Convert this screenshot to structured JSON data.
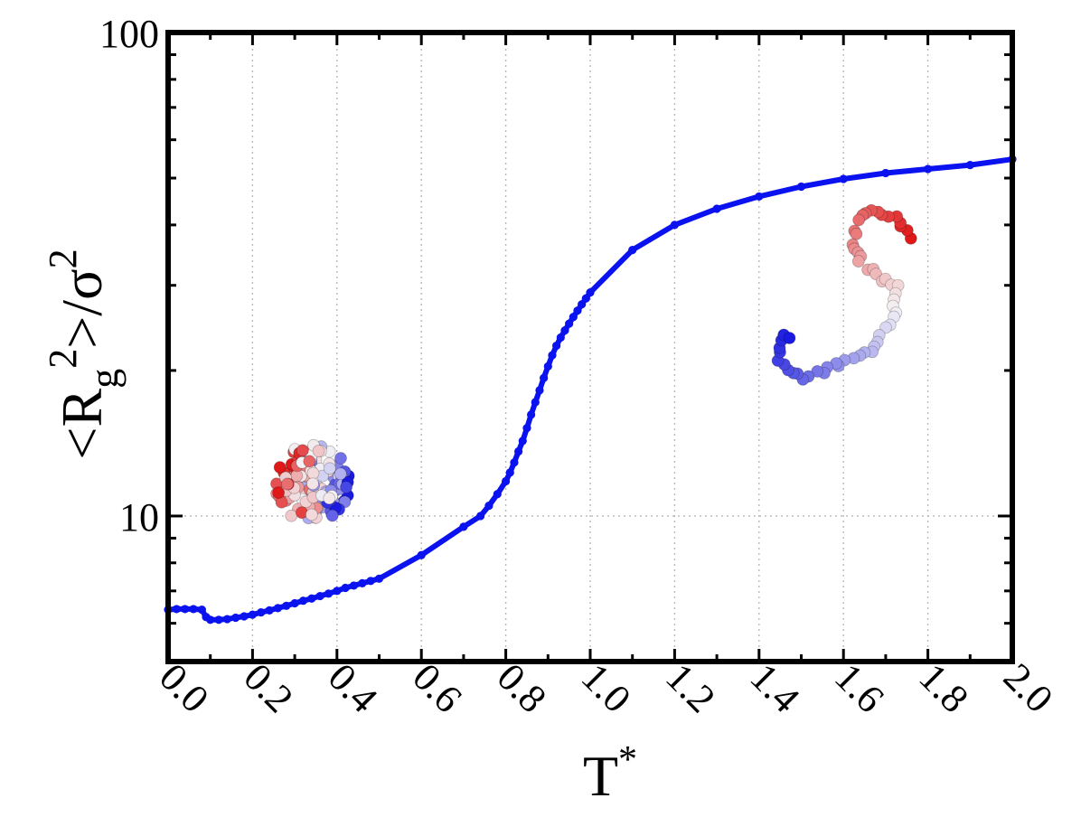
{
  "chart_data": {
    "type": "line",
    "title": "",
    "xlabel": "T",
    "xlabel_sup": "*",
    "ylabel_parts": {
      "open": "<R",
      "sub": "g",
      "sup1": "2",
      "mid": ">/σ",
      "sup2": "2"
    },
    "x_scale": "linear",
    "y_scale": "log",
    "xlim": [
      0.0,
      2.0
    ],
    "ylim": [
      5,
      100
    ],
    "x_ticks": [
      "0.0",
      "0.2",
      "0.4",
      "0.6",
      "0.8",
      "1.0",
      "1.2",
      "1.4",
      "1.6",
      "1.8",
      "2.0"
    ],
    "y_ticks": [
      "10",
      "100"
    ],
    "grid": "dotted, at major ticks",
    "line_color": "#0a12f0",
    "series": [
      {
        "x": [
          0.0,
          0.02,
          0.04,
          0.06,
          0.08,
          0.09,
          0.1,
          0.12,
          0.14,
          0.16,
          0.18,
          0.2,
          0.22,
          0.24,
          0.26,
          0.28,
          0.3,
          0.32,
          0.34,
          0.36,
          0.38,
          0.4,
          0.42,
          0.44,
          0.46,
          0.48,
          0.5,
          0.6,
          0.7,
          0.74,
          0.76,
          0.78,
          0.8,
          0.81,
          0.82,
          0.83,
          0.84,
          0.85,
          0.86,
          0.87,
          0.88,
          0.89,
          0.9,
          0.91,
          0.92,
          0.93,
          0.94,
          0.95,
          0.96,
          0.97,
          0.98,
          0.99,
          1.0,
          1.1,
          1.2,
          1.3,
          1.4,
          1.5,
          1.6,
          1.7,
          1.8,
          1.9,
          2.0
        ],
        "y": [
          6.4,
          6.42,
          6.42,
          6.42,
          6.4,
          6.18,
          6.1,
          6.1,
          6.12,
          6.16,
          6.2,
          6.25,
          6.32,
          6.38,
          6.45,
          6.52,
          6.6,
          6.68,
          6.75,
          6.83,
          6.91,
          7.0,
          7.1,
          7.18,
          7.26,
          7.34,
          7.42,
          8.3,
          9.5,
          10.0,
          10.5,
          11.1,
          11.8,
          12.3,
          12.9,
          13.6,
          14.3,
          15.2,
          16.2,
          17.2,
          18.2,
          19.3,
          20.4,
          21.5,
          22.5,
          23.4,
          24.2,
          25.0,
          25.8,
          26.6,
          27.4,
          28.2,
          29.0,
          35.5,
          40.0,
          43.2,
          45.8,
          48.0,
          49.8,
          51.2,
          52.2,
          53.2,
          54.7
        ]
      }
    ]
  },
  "insets": {
    "compact_polymer": {
      "name": "compact-polymer-inset"
    },
    "extended_polymer": {
      "name": "extended-polymer-inset"
    }
  }
}
